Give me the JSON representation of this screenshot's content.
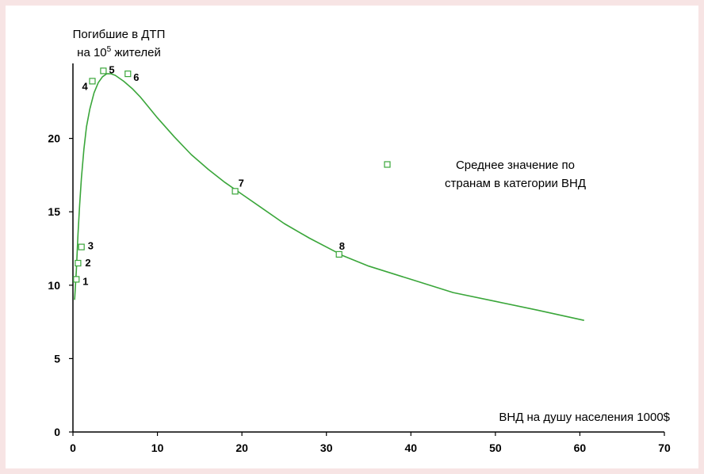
{
  "colors": {
    "page_bg": "#f7e4e4",
    "plot_bg": "#ffffff",
    "series": "#3aa63a",
    "axis": "#000000"
  },
  "chart_data": {
    "type": "scatter",
    "ylabel_line1": "Погибшие в ДТП",
    "ylabel_line2_pre": "на 10",
    "ylabel_line2_sup": "5",
    "ylabel_line2_post": " жителей",
    "xlabel": "ВНД на душу населения 1000$",
    "xlim": [
      0,
      70
    ],
    "ylim": [
      0,
      25
    ],
    "xticks": [
      "0",
      "10",
      "20",
      "30",
      "40",
      "50",
      "60",
      "70"
    ],
    "yticks": [
      "0",
      "5",
      "10",
      "15",
      "20"
    ],
    "legend": {
      "text_line1": "Среднее значение по",
      "text_line2": "странам в категории ВНД",
      "placement": "right"
    },
    "series": [
      {
        "kind": "points",
        "points": [
          {
            "label": "1",
            "x": 0.4,
            "y": 10.4
          },
          {
            "label": "2",
            "x": 0.6,
            "y": 11.5
          },
          {
            "label": "3",
            "x": 1.0,
            "y": 12.6
          },
          {
            "label": "4",
            "x": 2.3,
            "y": 23.9
          },
          {
            "label": "5",
            "x": 3.6,
            "y": 24.6
          },
          {
            "label": "6",
            "x": 6.5,
            "y": 24.4
          },
          {
            "label": "7",
            "x": 19.2,
            "y": 16.4
          },
          {
            "label": "8",
            "x": 31.5,
            "y": 12.1
          }
        ]
      },
      {
        "kind": "fitted-curve",
        "x": [
          0.2,
          0.4,
          0.6,
          0.8,
          1.0,
          1.3,
          1.6,
          2.0,
          2.5,
          3.0,
          3.5,
          4.0,
          4.5,
          5.0,
          6.0,
          7.0,
          8.0,
          10.0,
          12.0,
          14.0,
          16.0,
          18.0,
          20.0,
          22.0,
          25.0,
          28.0,
          31.0,
          32.0,
          35.0,
          40.0,
          45.0,
          50.0,
          55.0,
          60.5
        ],
        "y": [
          9.0,
          11.0,
          13.5,
          15.5,
          17.3,
          19.3,
          20.8,
          22.0,
          23.1,
          23.8,
          24.2,
          24.4,
          24.4,
          24.3,
          23.9,
          23.4,
          22.8,
          21.4,
          20.1,
          18.9,
          17.9,
          17.0,
          16.2,
          15.4,
          14.2,
          13.2,
          12.3,
          12.0,
          11.3,
          10.4,
          9.5,
          8.9,
          8.3,
          7.6
        ]
      }
    ]
  }
}
